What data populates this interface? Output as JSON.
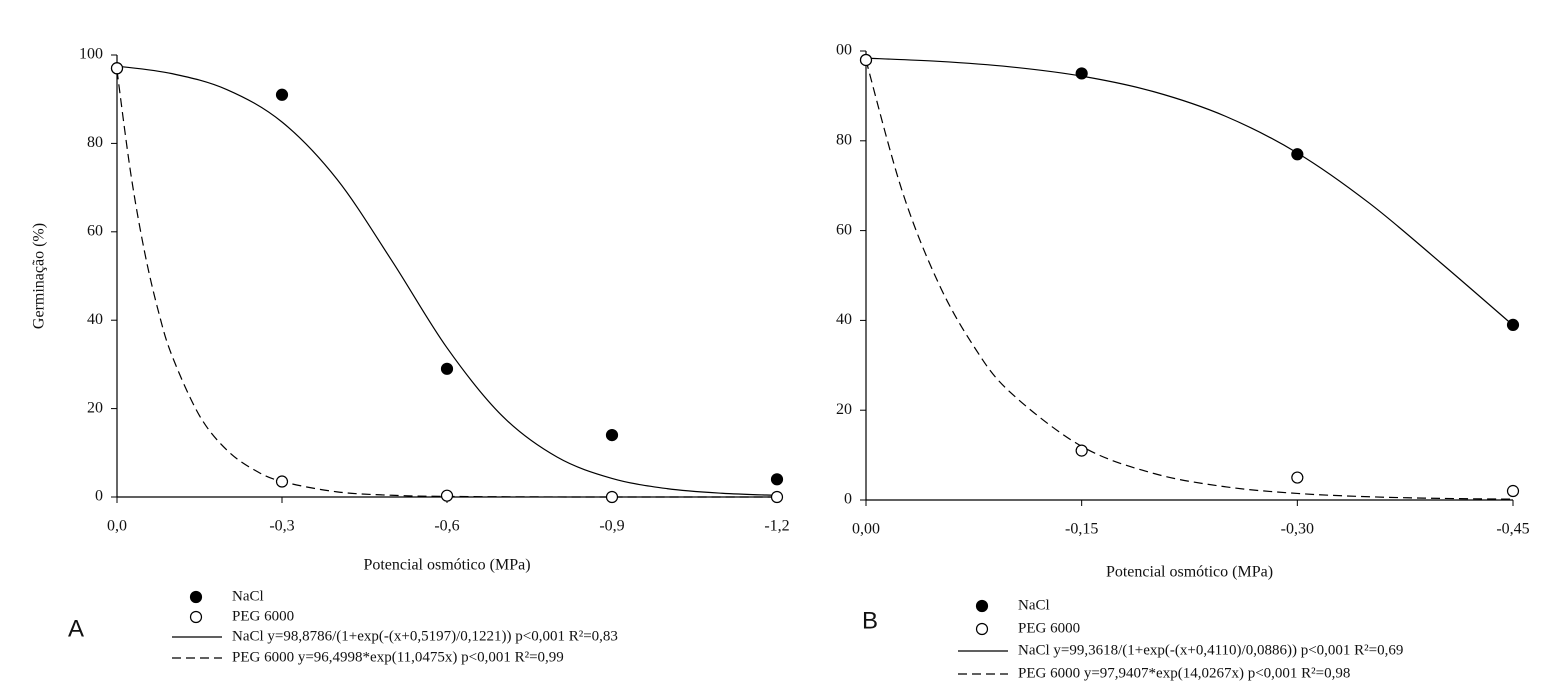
{
  "chart_data": [
    {
      "type": "scatter",
      "label": "A",
      "xlabel": "Potencial osmótico (MPa)",
      "ylabel": "Germinação (%)",
      "xlim": [
        0,
        -1.2
      ],
      "xticks": [
        {
          "value": 0,
          "label": "0,0"
        },
        {
          "value": -0.3,
          "label": "-0,3"
        },
        {
          "value": -0.6,
          "label": "-0,6"
        },
        {
          "value": -0.9,
          "label": "-0,9"
        },
        {
          "value": -1.2,
          "label": "-1,2"
        }
      ],
      "ylim": [
        0,
        100
      ],
      "yticks": [
        0,
        20,
        40,
        60,
        80,
        100
      ],
      "series": [
        {
          "name": "NaCl",
          "type": "scatter",
          "marker": "filled",
          "color": "#000000",
          "x": [
            0,
            -0.3,
            -0.6,
            -0.9,
            -1.2
          ],
          "values": [
            97,
            91,
            29,
            14,
            4
          ]
        },
        {
          "name": "PEG 6000",
          "type": "scatter",
          "marker": "open",
          "color": "#000000",
          "x": [
            0,
            -0.3,
            -0.6,
            -0.9,
            -1.2
          ],
          "values": [
            97,
            3.5,
            0.3,
            0,
            0
          ]
        },
        {
          "name": "NaCl y=98,8786/(1+exp(-(x+0,5197)/0,1221)) p<0,001 R²=0,83",
          "type": "line",
          "dash": false,
          "color": "#000000",
          "x": [
            0,
            -0.1,
            -0.2,
            -0.3,
            -0.4,
            -0.5,
            -0.6,
            -0.7,
            -0.8,
            -0.9,
            -1.0,
            -1.1,
            -1.2
          ],
          "values": [
            97.5,
            95.79,
            92.16,
            84.84,
            71.89,
            53.41,
            33.75,
            18.39,
            9.05,
            4.21,
            1.9,
            0.85,
            0.37
          ]
        },
        {
          "name": "PEG 6000 y=96,4998*exp(11,0475x) p<0,001 R²=0,99",
          "type": "line",
          "dash": true,
          "color": "#000000",
          "x": [
            0,
            -0.025,
            -0.05,
            -0.075,
            -0.1,
            -0.15,
            -0.2,
            -0.25,
            -0.3,
            -0.4,
            -0.5,
            -0.6,
            -0.8,
            -1.0,
            -1.2
          ],
          "values": [
            96.5,
            73.21,
            55.55,
            42.14,
            31.97,
            18.4,
            10.59,
            6.1,
            3.51,
            1.16,
            0.39,
            0.13,
            0.01,
            0,
            0
          ]
        }
      ]
    },
    {
      "type": "scatter",
      "label": "B",
      "xlabel": "Potencial osmótico (MPa)",
      "xlim": [
        0,
        -0.45
      ],
      "xticks": [
        {
          "value": 0,
          "label": "0,00"
        },
        {
          "value": -0.15,
          "label": "-0,15"
        },
        {
          "value": -0.3,
          "label": "-0,30"
        },
        {
          "value": -0.45,
          "label": "-0,45"
        }
      ],
      "ylim": [
        0,
        100
      ],
      "yticks": [
        0,
        20,
        40,
        60,
        80,
        {
          "value": 100,
          "label": "00"
        }
      ],
      "series": [
        {
          "name": "NaCl",
          "type": "scatter",
          "marker": "filled",
          "color": "#000000",
          "x": [
            0,
            -0.15,
            -0.3,
            -0.45
          ],
          "values": [
            98,
            95,
            77,
            39
          ]
        },
        {
          "name": "PEG 6000",
          "type": "scatter",
          "marker": "open",
          "color": "#000000",
          "x": [
            0,
            -0.15,
            -0.3,
            -0.45
          ],
          "values": [
            98,
            11,
            5,
            2
          ]
        },
        {
          "name": "NaCl y=99,3618/(1+exp(-(x+0,4110)/0,0886)) p<0,001 R²=0,69",
          "type": "line",
          "dash": false,
          "color": "#000000",
          "x": [
            0,
            -0.05,
            -0.1,
            -0.15,
            -0.2,
            -0.25,
            -0.3,
            -0.35,
            -0.4,
            -0.45
          ],
          "values": [
            98.41,
            97.7,
            96.48,
            94.4,
            90.95,
            85.47,
            77.29,
            66.13,
            52.76,
            38.92
          ]
        },
        {
          "name": "PEG 6000 y=97,9407*exp(14,0267x) p<0,001 R²=0,98",
          "type": "line",
          "dash": true,
          "color": "#000000",
          "x": [
            0,
            -0.025,
            -0.05,
            -0.075,
            -0.1,
            -0.15,
            -0.2,
            -0.25,
            -0.3,
            -0.35,
            -0.4,
            -0.45
          ],
          "values": [
            97.94,
            68.97,
            48.58,
            34.21,
            24.09,
            11.95,
            5.93,
            2.94,
            1.46,
            0.72,
            0.36,
            0.18
          ]
        }
      ]
    }
  ]
}
